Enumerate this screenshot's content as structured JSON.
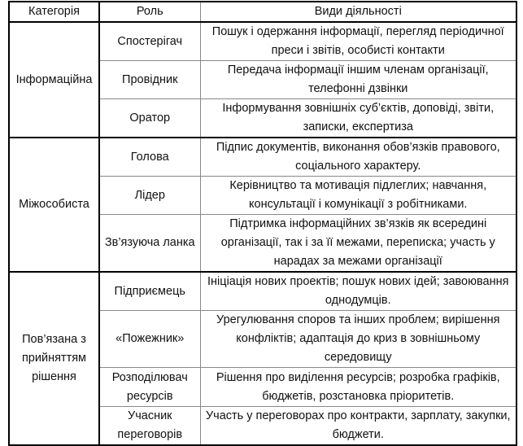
{
  "header": {
    "category": "Категорія",
    "role": "Роль",
    "activities": "Види діяльності"
  },
  "groups": [
    {
      "category": "Інформаційна",
      "rows": [
        {
          "role": "Спостерігач",
          "activities": "Пошук і одержання інформації, перегляд періодичної преси і звітів, особисті контакти"
        },
        {
          "role": "Провідник",
          "activities": "Передача інформації іншим членам організації, телефонні дзвінки"
        },
        {
          "role": "Оратор",
          "activities": "Інформування зовнішніх суб’єктів, доповіді, звіти, записки, експертиза"
        }
      ]
    },
    {
      "category": "Міжособиста",
      "rows": [
        {
          "role": "Голова",
          "activities": "Підпис документів, виконання обов’язків правового, соціального характеру."
        },
        {
          "role": "Лідер",
          "activities": "Керівництво та мотивація підлеглих; навчання, консультації і комунікації з  робітниками."
        },
        {
          "role": "Зв’язуюча ланка",
          "activities": "Підтримка інформаційних зв’язків як всередині організації, так і за її межами, переписка; участь у нарадах за межами організації"
        }
      ]
    },
    {
      "category": "Пов’язана з прийняттям рішення",
      "rows": [
        {
          "role": "Підприємець",
          "activities": "Ініціація нових проектів; пошук нових ідей; завоювання однодумців."
        },
        {
          "role": "«Пожежник»",
          "activities": "Урегулювання споров та інших проблем; вирішення конфліктів; адаптація до криз в зовнішньому середовищу"
        },
        {
          "role": "Розподілювач ресурсів",
          "activities": "Рішення про виділення ресурсів; розробка графіків, бюджетів, розстановка пріоритетів."
        },
        {
          "role": "Учасник переговорів",
          "activities": "Участь у переговорах про контракти, зарплату, закупки, бюджети."
        }
      ]
    }
  ]
}
